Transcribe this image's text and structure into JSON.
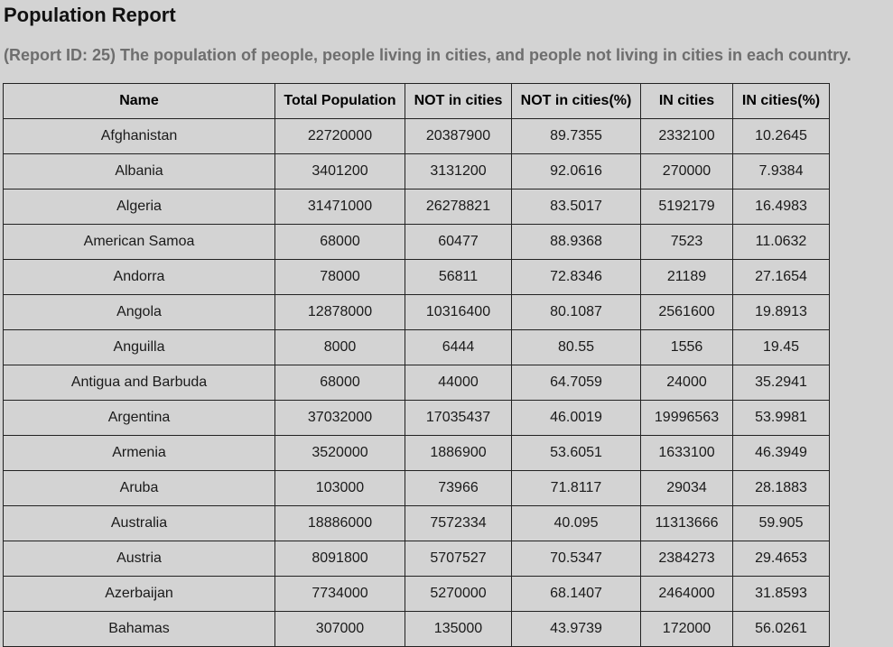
{
  "page": {
    "title": "Population Report",
    "subtitle": "(Report ID: 25) The population of people, people living in cities, and people not living in cities in each country."
  },
  "table": {
    "headers": [
      "Name",
      "Total Population",
      "NOT in cities",
      "NOT in cities(%)",
      "IN cities",
      "IN cities(%)"
    ],
    "rows": [
      [
        "Afghanistan",
        "22720000",
        "20387900",
        "89.7355",
        "2332100",
        "10.2645"
      ],
      [
        "Albania",
        "3401200",
        "3131200",
        "92.0616",
        "270000",
        "7.9384"
      ],
      [
        "Algeria",
        "31471000",
        "26278821",
        "83.5017",
        "5192179",
        "16.4983"
      ],
      [
        "American Samoa",
        "68000",
        "60477",
        "88.9368",
        "7523",
        "11.0632"
      ],
      [
        "Andorra",
        "78000",
        "56811",
        "72.8346",
        "21189",
        "27.1654"
      ],
      [
        "Angola",
        "12878000",
        "10316400",
        "80.1087",
        "2561600",
        "19.8913"
      ],
      [
        "Anguilla",
        "8000",
        "6444",
        "80.55",
        "1556",
        "19.45"
      ],
      [
        "Antigua and Barbuda",
        "68000",
        "44000",
        "64.7059",
        "24000",
        "35.2941"
      ],
      [
        "Argentina",
        "37032000",
        "17035437",
        "46.0019",
        "19996563",
        "53.9981"
      ],
      [
        "Armenia",
        "3520000",
        "1886900",
        "53.6051",
        "1633100",
        "46.3949"
      ],
      [
        "Aruba",
        "103000",
        "73966",
        "71.8117",
        "29034",
        "28.1883"
      ],
      [
        "Australia",
        "18886000",
        "7572334",
        "40.095",
        "11313666",
        "59.905"
      ],
      [
        "Austria",
        "8091800",
        "5707527",
        "70.5347",
        "2384273",
        "29.4653"
      ],
      [
        "Azerbaijan",
        "7734000",
        "5270000",
        "68.1407",
        "2464000",
        "31.8593"
      ],
      [
        "Bahamas",
        "307000",
        "135000",
        "43.9739",
        "172000",
        "56.0261"
      ]
    ]
  }
}
